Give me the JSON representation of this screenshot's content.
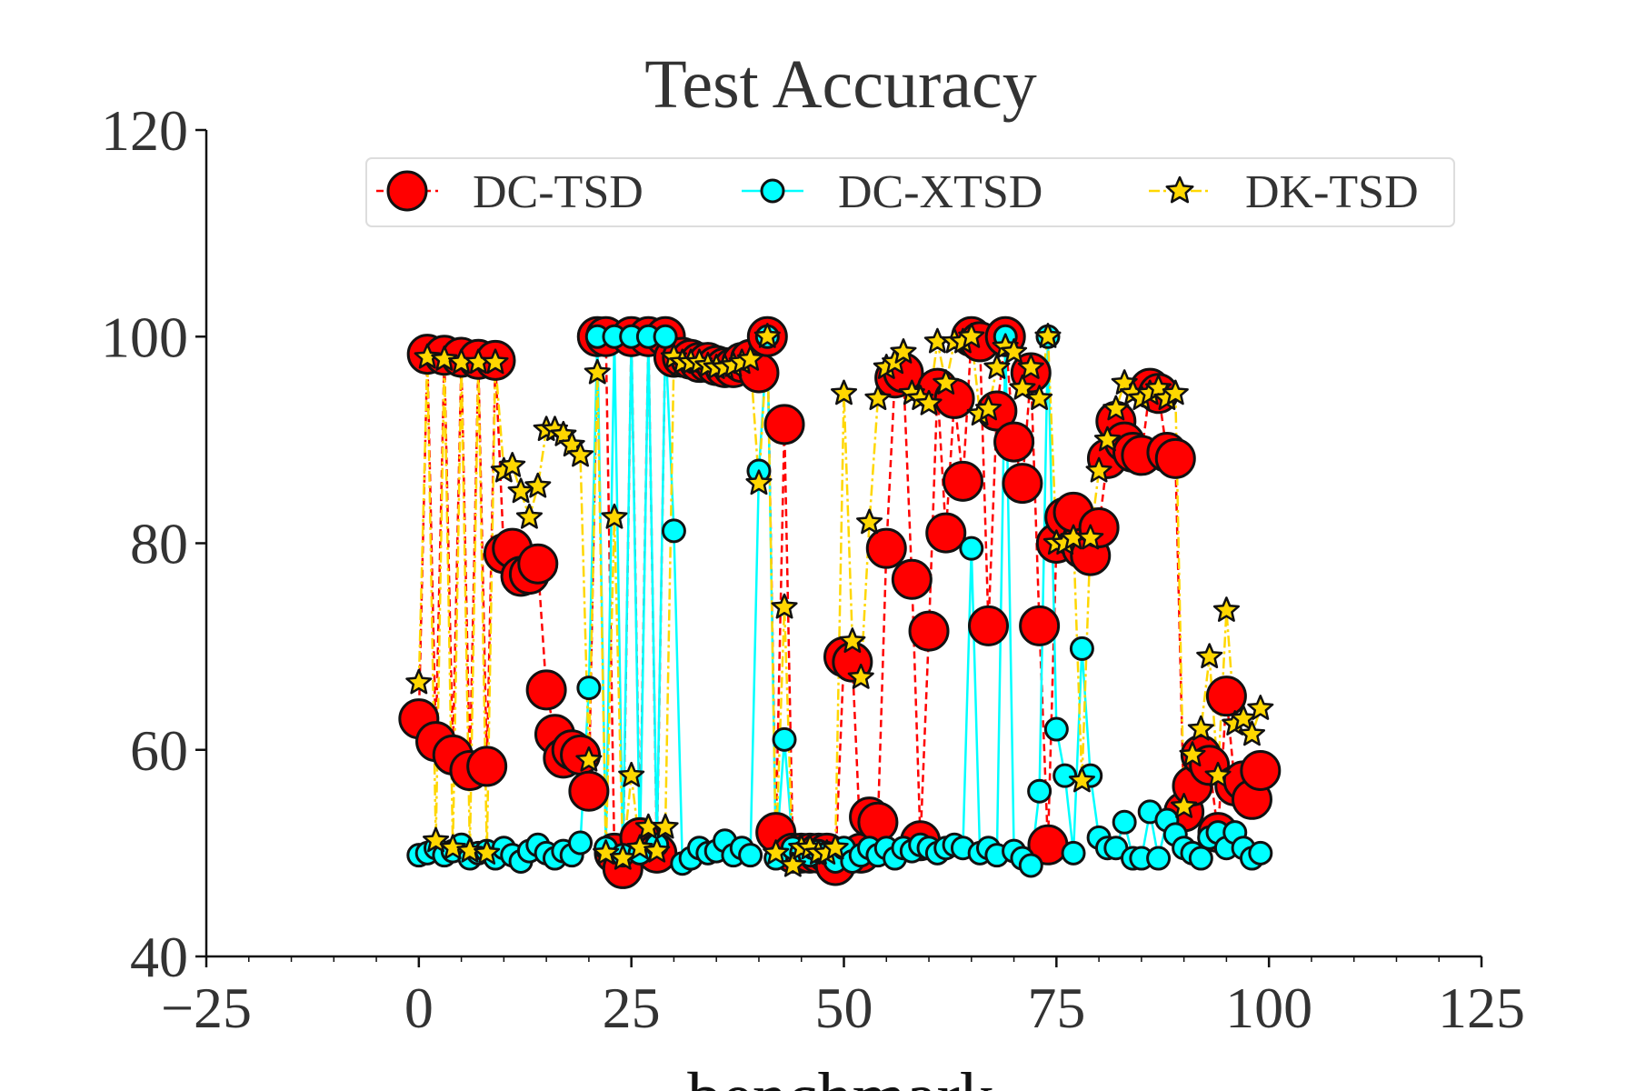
{
  "chart_data": {
    "type": "scatter",
    "title": "Test Accuracy",
    "xlabel": "benchmark",
    "ylabel": "",
    "xlim": [
      -25,
      125
    ],
    "ylim": [
      40,
      120
    ],
    "x_ticks": [
      -25,
      0,
      25,
      50,
      75,
      100,
      125
    ],
    "y_ticks": [
      40,
      60,
      80,
      100,
      120
    ],
    "x_tick_labels": [
      "−25",
      "0",
      "25",
      "50",
      "75",
      "100",
      "125"
    ],
    "y_tick_labels": [
      "40",
      "60",
      "80",
      "100",
      "120"
    ],
    "grid": false,
    "legend_position": "top",
    "x": [
      0,
      1,
      2,
      3,
      4,
      5,
      6,
      7,
      8,
      9,
      10,
      11,
      12,
      13,
      14,
      15,
      16,
      17,
      18,
      19,
      20,
      21,
      22,
      23,
      24,
      25,
      26,
      27,
      28,
      29,
      30,
      31,
      32,
      33,
      34,
      35,
      36,
      37,
      38,
      39,
      40,
      41,
      42,
      43,
      44,
      45,
      46,
      47,
      48,
      49,
      50,
      51,
      52,
      53,
      54,
      55,
      56,
      57,
      58,
      59,
      60,
      61,
      62,
      63,
      64,
      65,
      66,
      67,
      68,
      69,
      70,
      71,
      72,
      73,
      74,
      75,
      76,
      77,
      78,
      79,
      80,
      81,
      82,
      83,
      84,
      85,
      86,
      87,
      88,
      89,
      90,
      91,
      92,
      93,
      94,
      95,
      96,
      97,
      98,
      99
    ],
    "series": [
      {
        "name": "DC-TSD",
        "color": "#ff0000",
        "line_style": "dashed",
        "marker": "circle",
        "marker_size": 21,
        "values": [
          63,
          98.3,
          60.8,
          98.2,
          59.5,
          98,
          58,
          97.8,
          58.4,
          97.7,
          79,
          79.5,
          76.8,
          77,
          78,
          65.8,
          61.5,
          59.2,
          60,
          59.5,
          56,
          100,
          100,
          50,
          48.5,
          100,
          51.5,
          100,
          50,
          100,
          98,
          98,
          97.8,
          97.5,
          97.5,
          97.2,
          97,
          97,
          97.5,
          97.8,
          96.5,
          100,
          52,
          91.5,
          50,
          50,
          50,
          50,
          50,
          48.8,
          69,
          68.5,
          50,
          53.5,
          53,
          79.5,
          96,
          96.5,
          76.5,
          51.2,
          71.5,
          95,
          81,
          94,
          86,
          100,
          99.5,
          72,
          92.8,
          100,
          89.8,
          85.8,
          96.5,
          72,
          50.8,
          80,
          82.5,
          83,
          79.5,
          78.8,
          81.5,
          88.2,
          91.8,
          89.8,
          88.8,
          88.5,
          95,
          94.5,
          88.8,
          88.2,
          54,
          56.5,
          59.5,
          58.5,
          52,
          65.2,
          56.5,
          57,
          55.2,
          58
        ]
      },
      {
        "name": "DC-XTSD",
        "color": "#00ffff",
        "line_style": "solid",
        "marker": "circle",
        "marker_size": 12,
        "values": [
          49.8,
          50,
          50.5,
          49.8,
          50.2,
          50.8,
          49.5,
          50,
          50.2,
          49.5,
          50.5,
          49.8,
          49.2,
          50.2,
          50.8,
          50,
          49.5,
          50.2,
          49.8,
          51,
          66,
          100,
          50.5,
          100,
          49.8,
          100,
          50,
          100,
          50.8,
          100,
          81.2,
          49,
          49.5,
          50.5,
          50,
          50.2,
          51.2,
          49.8,
          50.5,
          49.8,
          87,
          100,
          49.5,
          61,
          50.5,
          50,
          49.8,
          50.2,
          50,
          49.2,
          50.5,
          49.2,
          49.8,
          50.5,
          49.8,
          50.5,
          49.5,
          50.5,
          50.2,
          50.8,
          50.5,
          50,
          50.5,
          50.8,
          50.5,
          79.5,
          50,
          50.5,
          49.8,
          100,
          50.2,
          49.5,
          48.8,
          56,
          100,
          62,
          57.5,
          50,
          69.8,
          57.5,
          51.5,
          50.5,
          50.5,
          53,
          49.5,
          49.5,
          54,
          49.5,
          53.2,
          51.8,
          50.5,
          50,
          49.5,
          51.5,
          52,
          50.5,
          52,
          50.5,
          49.5,
          50
        ]
      },
      {
        "name": "DK-TSD",
        "color": "#ffd700",
        "line_style": "dashdot",
        "marker": "star",
        "marker_size": 14,
        "values": [
          66.5,
          98,
          51.2,
          97.8,
          50.5,
          97.5,
          50.2,
          97.5,
          50,
          97.5,
          87,
          87.5,
          85,
          82.5,
          85.5,
          91,
          91,
          90.5,
          89.5,
          88.5,
          59,
          96.5,
          50,
          82.5,
          49.5,
          57.5,
          50.5,
          52.5,
          50.2,
          52.5,
          98,
          97.5,
          97.5,
          97.5,
          97.2,
          97,
          97,
          97.2,
          97.5,
          97.8,
          85.8,
          100,
          50,
          73.8,
          48.8,
          50.5,
          50.5,
          50,
          50,
          50.5,
          94.5,
          70.5,
          67,
          82,
          94,
          97,
          97.5,
          98.5,
          94.5,
          94,
          93.5,
          99.5,
          95.5,
          99.5,
          99.5,
          100,
          92.5,
          93,
          97,
          99,
          98.5,
          95,
          97,
          94,
          100,
          80,
          80,
          80.5,
          57,
          80.5,
          87,
          90,
          93,
          95.5,
          94.5,
          94,
          94.5,
          95,
          94,
          94.5,
          54.5,
          59.5,
          62,
          69,
          57.5,
          73.5,
          62.5,
          63,
          61.5,
          64
        ]
      }
    ]
  }
}
